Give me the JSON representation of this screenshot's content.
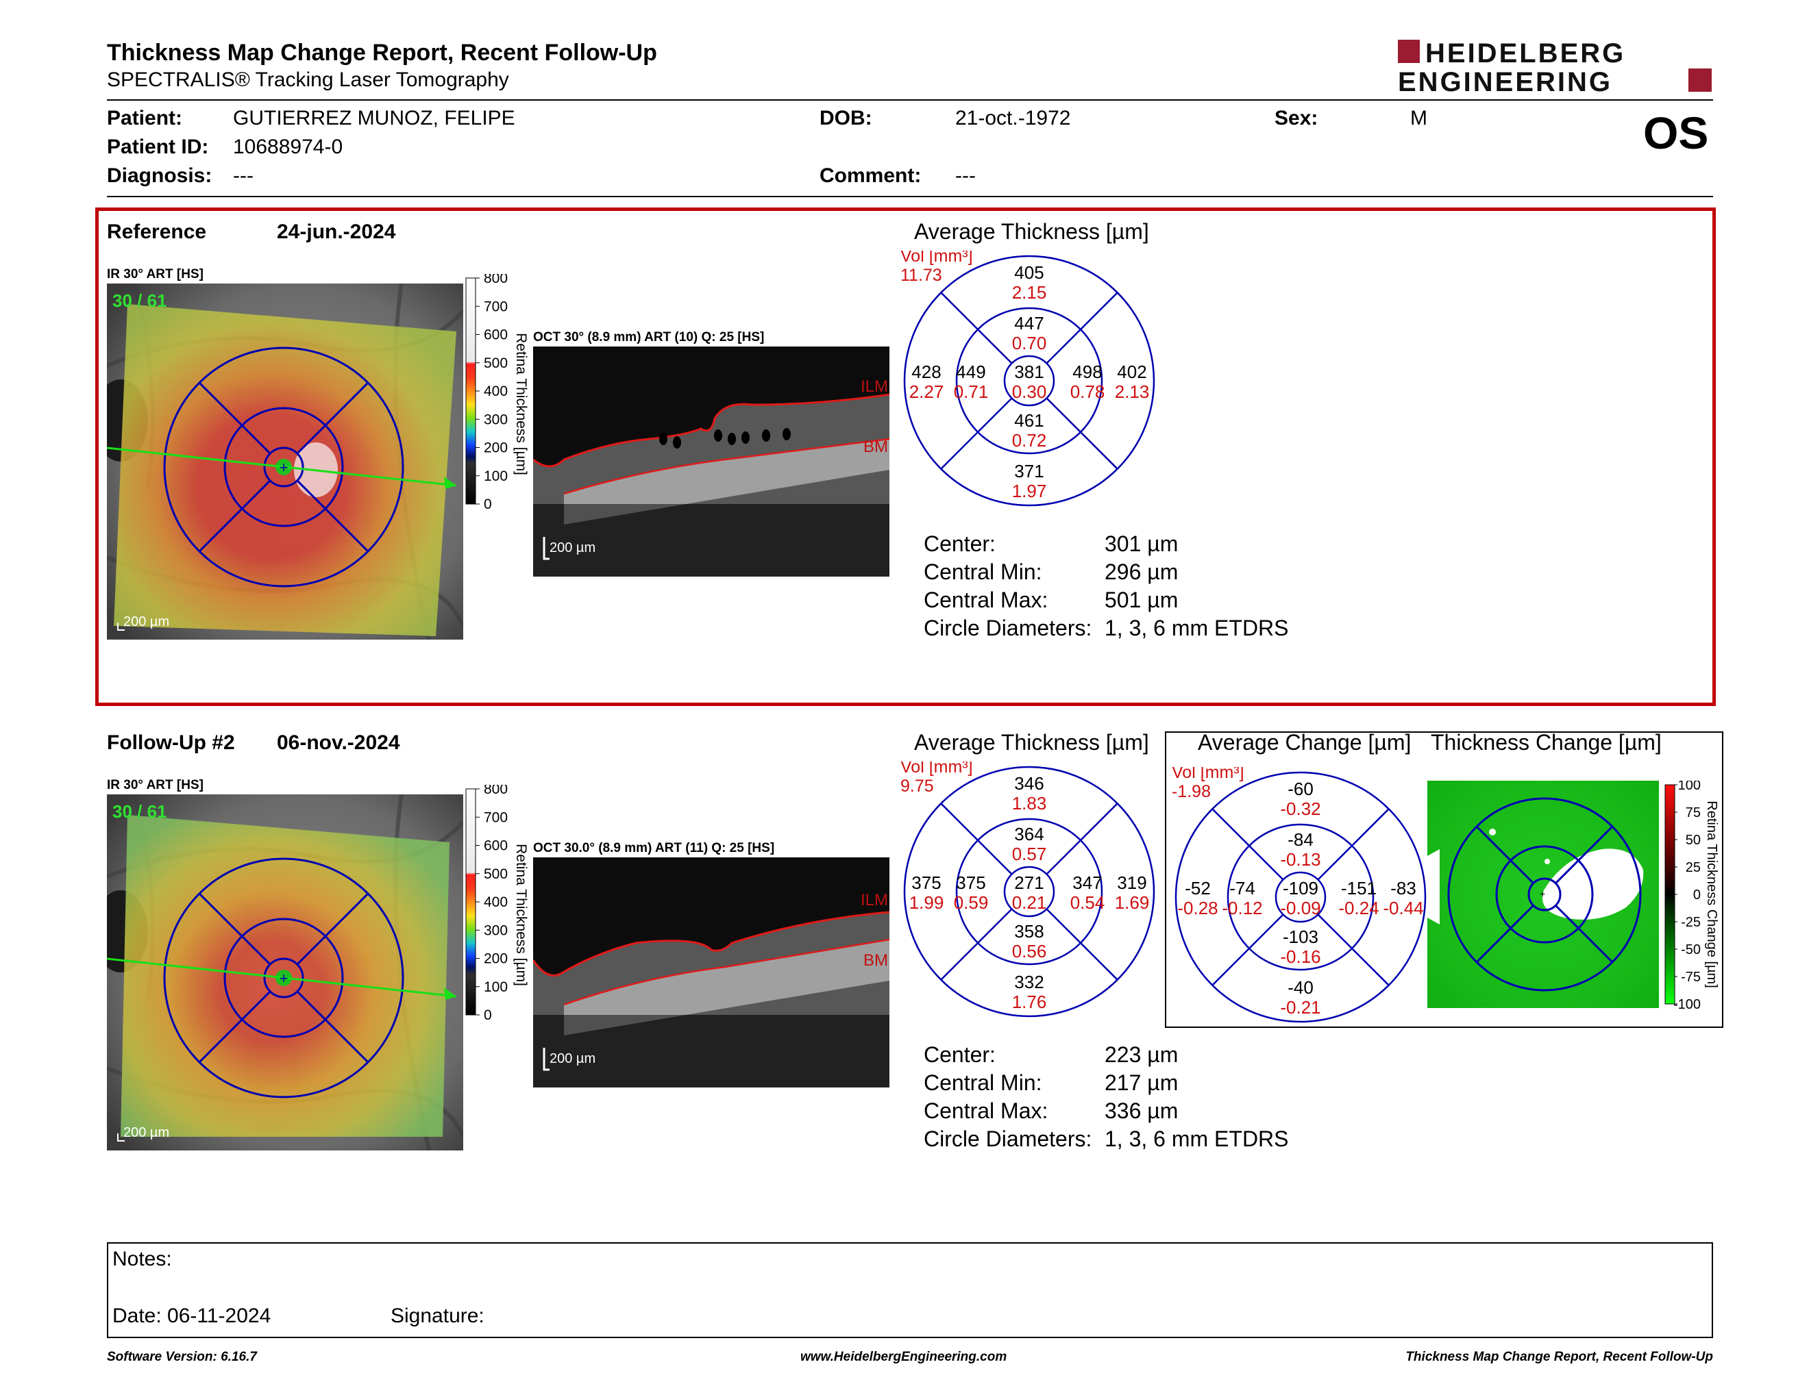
{
  "header": {
    "title": "Thickness Map Change Report, Recent Follow-Up",
    "subtitle": "SPECTRALIS® Tracking Laser Tomography",
    "logo_line1": "HEIDELBERG",
    "logo_line2": "ENGINEERING",
    "eye": "OS"
  },
  "patient": {
    "name_label": "Patient:",
    "name": "GUTIERREZ MUNOZ, FELIPE",
    "dob_label": "DOB:",
    "dob": "21-oct.-1972",
    "sex_label": "Sex:",
    "sex": "M",
    "id_label": "Patient ID:",
    "id": "10688974-0",
    "diagnosis_label": "Diagnosis:",
    "diagnosis": "---",
    "comment_label": "Comment:",
    "comment": "---"
  },
  "reference": {
    "label": "Reference",
    "date": "24-jun.-2024",
    "ir_label": "IR 30° ART [HS]",
    "ir_overlay": "30 / 61",
    "scale_label": "200 µm",
    "oct_label": "OCT 30° (8.9 mm) ART (10) Q: 25 [HS]",
    "oct_scale": "200 µm",
    "avg_title": "Average Thickness [µm]",
    "vol_label": "Vol [mm³]",
    "vol_total": "11.73",
    "etdrs": {
      "center": [
        "381",
        "0.30"
      ],
      "inner_sup": [
        "447",
        "0.70"
      ],
      "inner_nas": [
        "498",
        "0.78"
      ],
      "inner_inf": [
        "461",
        "0.72"
      ],
      "inner_temp": [
        "449",
        "0.71"
      ],
      "outer_sup": [
        "405",
        "2.15"
      ],
      "outer_nas": [
        "402",
        "2.13"
      ],
      "outer_inf": [
        "371",
        "1.97"
      ],
      "outer_temp": [
        "428",
        "2.27"
      ]
    },
    "stats": [
      {
        "label": "Center:",
        "value": "301 µm"
      },
      {
        "label": "Central Min:",
        "value": "296 µm"
      },
      {
        "label": "Central Max:",
        "value": "501 µm"
      },
      {
        "label": "Circle Diameters:",
        "value": "1, 3, 6 mm ETDRS"
      }
    ]
  },
  "followup": {
    "label": "Follow-Up #2",
    "date": "06-nov.-2024",
    "ir_label": "IR 30° ART [HS]",
    "ir_overlay": "30 / 61",
    "scale_label": "200 µm",
    "oct_label": "OCT 30.0° (8.9 mm) ART (11) Q: 25 [HS]",
    "oct_scale": "200 µm",
    "avg_title": "Average Thickness [µm]",
    "vol_label": "Vol [mm³]",
    "vol_total": "9.75",
    "etdrs": {
      "center": [
        "271",
        "0.21"
      ],
      "inner_sup": [
        "364",
        "0.57"
      ],
      "inner_nas": [
        "347",
        "0.54"
      ],
      "inner_inf": [
        "358",
        "0.56"
      ],
      "inner_temp": [
        "375",
        "0.59"
      ],
      "outer_sup": [
        "346",
        "1.83"
      ],
      "outer_nas": [
        "319",
        "1.69"
      ],
      "outer_inf": [
        "332",
        "1.76"
      ],
      "outer_temp": [
        "375",
        "1.99"
      ]
    },
    "stats": [
      {
        "label": "Center:",
        "value": "223 µm"
      },
      {
        "label": "Central Min:",
        "value": "217 µm"
      },
      {
        "label": "Central Max:",
        "value": "336 µm"
      },
      {
        "label": "Circle Diameters:",
        "value": "1, 3, 6 mm ETDRS"
      }
    ]
  },
  "change": {
    "avg_title": "Average Change [µm]",
    "map_title": "Thickness Change [µm]",
    "vol_label": "Vol [mm³]",
    "vol_total": "-1.98",
    "etdrs": {
      "center": [
        "-109",
        "-0.09"
      ],
      "inner_sup": [
        "-84",
        "-0.13"
      ],
      "inner_nas": [
        "-151",
        "-0.24"
      ],
      "inner_inf": [
        "-103",
        "-0.16"
      ],
      "inner_temp": [
        "-74",
        "-0.12"
      ],
      "outer_sup": [
        "-60",
        "-0.32"
      ],
      "outer_nas": [
        "-83",
        "-0.44"
      ],
      "outer_inf": [
        "-40",
        "-0.21"
      ],
      "outer_temp": [
        "-52",
        "-0.28"
      ]
    },
    "colorbar_title": "Retina Thickness Change [µm]",
    "colorbar_ticks": [
      "100",
      "75",
      "50",
      "25",
      "0",
      "-25",
      "-50",
      "-75",
      "-100"
    ]
  },
  "thickness_colorbar": {
    "title": "Retina Thickness [µm]",
    "ticks": [
      "800",
      "700",
      "600",
      "500",
      "400",
      "300",
      "200",
      "100",
      "0"
    ]
  },
  "oct_markers": {
    "ilm": "ILM",
    "bm": "BM"
  },
  "notes": {
    "label": "Notes:",
    "date_label": "Date: 06-11-2024",
    "signature_label": "Signature:"
  },
  "footer": {
    "software": "Software Version: 6.16.7",
    "url": "www.HeidelbergEngineering.com",
    "report": "Thickness Map Change Report, Recent Follow-Up"
  },
  "colors": {
    "brand_red": "#9b1b30",
    "frame_red": "#c00000",
    "etdrs_blue": "#0000b0",
    "volume_red": "#d01010"
  }
}
